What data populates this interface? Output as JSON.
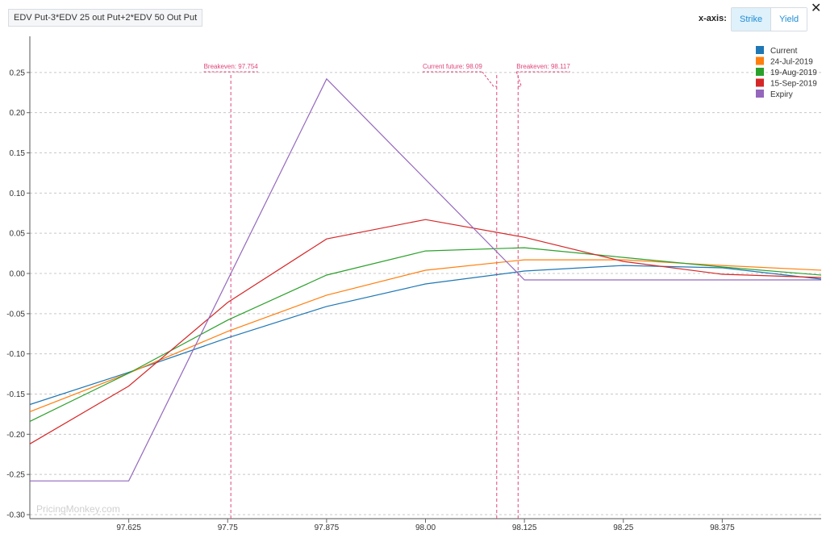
{
  "header": {
    "title": "EDV Put-3*EDV 25 out Put+2*EDV 50 Out Put",
    "xaxis_label": "x-axis:",
    "toggle": [
      "Strike",
      "Yield"
    ],
    "active_toggle": "Strike"
  },
  "close_icon": "close-icon",
  "watermark": "PricingMonkey.com",
  "chart_data": {
    "type": "line",
    "x_ticks": [
      "97.625",
      "97.75",
      "97.875",
      "98.00",
      "98.125",
      "98.25",
      "98.375"
    ],
    "x_tick_values": [
      97.625,
      97.75,
      97.875,
      98.0,
      98.125,
      98.25,
      98.375
    ],
    "y_ticks": [
      "0.25",
      "0.20",
      "0.15",
      "0.10",
      "0.05",
      "0.00",
      "-0.05",
      "-0.10",
      "-0.15",
      "-0.20",
      "-0.25",
      "-0.30"
    ],
    "y_tick_values": [
      0.25,
      0.2,
      0.15,
      0.1,
      0.05,
      0.0,
      -0.05,
      -0.1,
      -0.15,
      -0.2,
      -0.25,
      -0.3
    ],
    "xlim": [
      97.5,
      98.5
    ],
    "ylim": [
      -0.305,
      0.295
    ],
    "grid": true,
    "legend_position": "top-right",
    "series": [
      {
        "name": "Current",
        "color": "#1f77b4",
        "x": [
          97.5,
          97.625,
          97.75,
          97.875,
          98.0,
          98.125,
          98.25,
          98.375,
          98.5
        ],
        "y": [
          -0.163,
          -0.123,
          -0.08,
          -0.041,
          -0.013,
          0.003,
          0.01,
          0.007,
          -0.007
        ]
      },
      {
        "name": "24-Jul-2019",
        "color": "#ff7f0e",
        "x": [
          97.5,
          97.625,
          97.75,
          97.875,
          98.0,
          98.125,
          98.25,
          98.375,
          98.5
        ],
        "y": [
          -0.172,
          -0.124,
          -0.072,
          -0.027,
          0.004,
          0.017,
          0.017,
          0.01,
          0.004
        ]
      },
      {
        "name": "19-Aug-2019",
        "color": "#2ca02c",
        "x": [
          97.5,
          97.625,
          97.75,
          97.875,
          98.0,
          98.125,
          98.25,
          98.375,
          98.5
        ],
        "y": [
          -0.184,
          -0.124,
          -0.058,
          -0.002,
          0.028,
          0.032,
          0.02,
          0.008,
          -0.002
        ]
      },
      {
        "name": "15-Sep-2019",
        "color": "#d62728",
        "x": [
          97.5,
          97.625,
          97.75,
          97.875,
          98.0,
          98.125,
          98.25,
          98.375,
          98.5
        ],
        "y": [
          -0.212,
          -0.14,
          -0.036,
          0.043,
          0.067,
          0.045,
          0.015,
          -0.001,
          -0.005
        ]
      },
      {
        "name": "Expiry",
        "color": "#9467bd",
        "x": [
          97.5,
          97.625,
          97.875,
          98.125,
          98.5
        ],
        "y": [
          -0.258,
          -0.258,
          0.242,
          -0.008,
          -0.008
        ]
      }
    ],
    "vlines": [
      {
        "x": 97.754,
        "label": "Breakeven: 97.754",
        "label_side": "center"
      },
      {
        "x": 98.09,
        "label": "Current future: 98.09",
        "label_side": "left"
      },
      {
        "x": 98.117,
        "label": "Breakeven: 98.117",
        "label_side": "right"
      }
    ]
  }
}
